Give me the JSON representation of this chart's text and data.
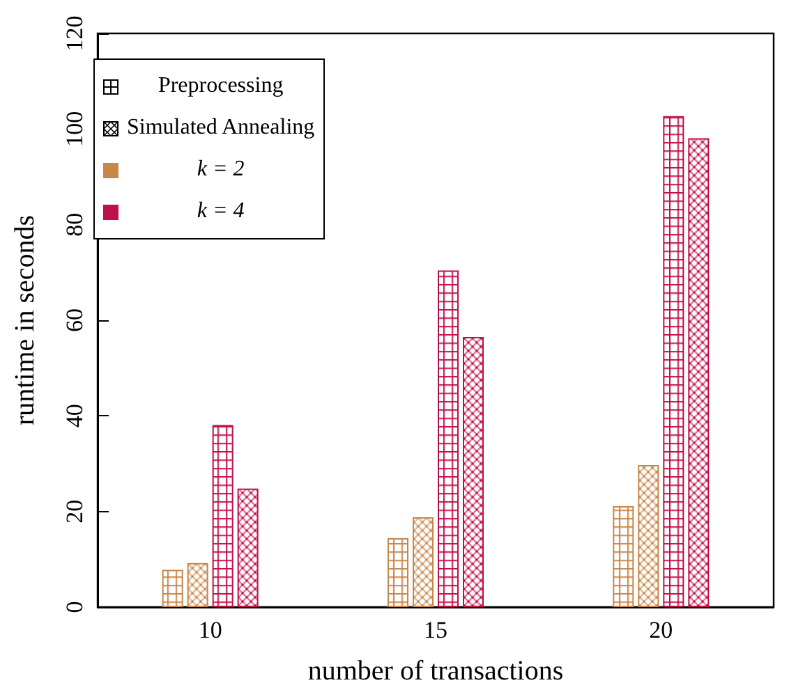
{
  "chart_data": {
    "type": "bar",
    "xlabel": "number of transactions",
    "ylabel": "runtime in seconds",
    "categories": [
      "10",
      "15",
      "20"
    ],
    "series": [
      {
        "color": "#c8864a",
        "values": [
          7.8,
          14.4,
          21.1
        ]
      },
      {
        "color": "#c8864a",
        "values": [
          9.2,
          18.8,
          29.7
        ]
      },
      {
        "color": "#c0104a",
        "values": [
          38.1,
          70.4,
          102.7
        ]
      },
      {
        "color": "#c0104a",
        "values": [
          24.8,
          56.5,
          98.1
        ]
      }
    ],
    "ylim": [
      0,
      120
    ],
    "yticks": [
      0,
      20,
      40,
      60,
      80,
      100,
      120
    ],
    "grid": false,
    "annotations": [
      "Preprocessing",
      "Simulated Annealing",
      "k = 2",
      "k = 4"
    ]
  }
}
